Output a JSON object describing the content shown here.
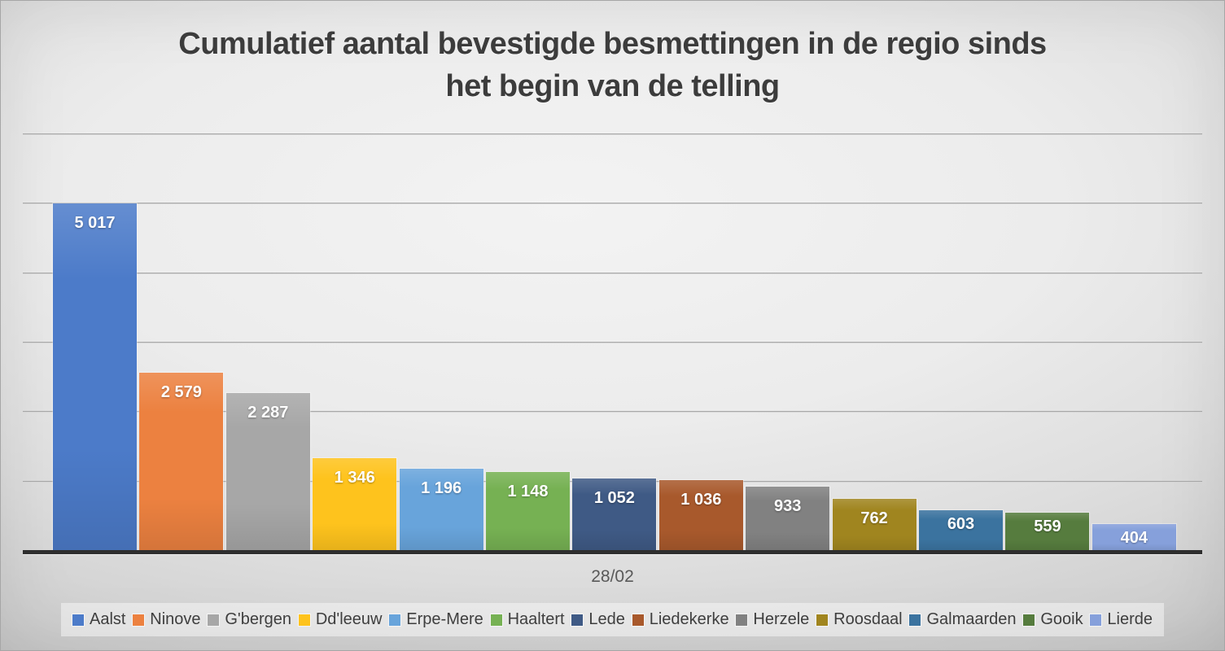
{
  "title": {
    "line1": "Cumulatief aantal bevestigde besmettingen in de regio sinds",
    "line2": "het begin van de telling"
  },
  "chart_data": {
    "type": "bar",
    "title": "Cumulatief aantal bevestigde besmettingen in de regio sinds het begin van de telling",
    "categories": [
      "28/02"
    ],
    "series": [
      {
        "name": "Aalst",
        "value": 5017,
        "label": "5 017",
        "color": "#4C7BC9"
      },
      {
        "name": "Ninove",
        "value": 2579,
        "label": "2 579",
        "color": "#EC8140"
      },
      {
        "name": "G'bergen",
        "value": 2287,
        "label": "2 287",
        "color": "#A7A7A7"
      },
      {
        "name": "Dd'leeuw",
        "value": 1346,
        "label": "1 346",
        "color": "#FEC31D"
      },
      {
        "name": "Erpe-Mere",
        "value": 1196,
        "label": "1 196",
        "color": "#68A4DB"
      },
      {
        "name": "Haaltert",
        "value": 1148,
        "label": "1 148",
        "color": "#76B153"
      },
      {
        "name": "Lede",
        "value": 1052,
        "label": "1 052",
        "color": "#3F5A85"
      },
      {
        "name": "Liedekerke",
        "value": 1036,
        "label": "1 036",
        "color": "#A8592C"
      },
      {
        "name": "Herzele",
        "value": 933,
        "label": "933",
        "color": "#818181"
      },
      {
        "name": "Roosdaal",
        "value": 762,
        "label": "762",
        "color": "#A0851F"
      },
      {
        "name": "Galmaarden",
        "value": 603,
        "label": "603",
        "color": "#3B739F"
      },
      {
        "name": "Gooik",
        "value": 559,
        "label": "559",
        "color": "#567C3E"
      },
      {
        "name": "Lierde",
        "value": 404,
        "label": "404",
        "color": "#86A0DB"
      }
    ],
    "xlabel": "",
    "ylabel": "",
    "ylim": [
      0,
      6000
    ],
    "gridline_step": 1000,
    "grid": true,
    "legend_position": "bottom",
    "value_labels": "inside-end",
    "label_color": "#ffffff"
  }
}
